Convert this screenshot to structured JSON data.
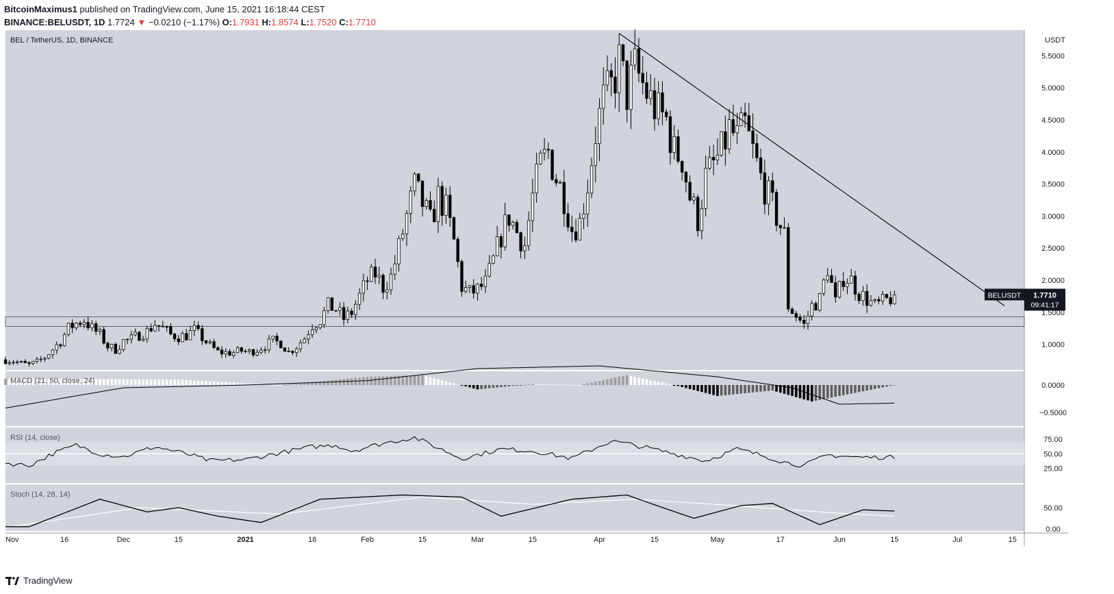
{
  "header": {
    "publisher": "BitcoinMaximus1",
    "published_text": " published on TradingView.com, June 15, 2021 16:18:44 CEST",
    "symbol": "BINANCE:BELUSDT, 1D",
    "last": "1.7724",
    "change_arrow": "▼",
    "change": "−0.0210 (−1.17%)",
    "open_label": "O:",
    "open": "1.7931",
    "high_label": "H:",
    "high": "1.8574",
    "low_label": "L:",
    "low": "1.7520",
    "close_label": "C:",
    "close": "1.7710"
  },
  "footer": {
    "brand": "TradingView"
  },
  "colors": {
    "panel_bg": "#d1d4dc",
    "band_bg": "#dcdee5",
    "candle_up_fill": "#ffffff",
    "candle_down_fill": "#000000",
    "line": "#000000",
    "down_text": "#e53935"
  },
  "chart_data": [
    {
      "type": "candlestick",
      "title": "BEL / TetherUS, 1D, BINANCE",
      "ylabel": "USDT",
      "ylim": [
        0.6,
        5.9
      ],
      "yticks": [
        1.0,
        1.5,
        2.0,
        2.5,
        3.0,
        3.5,
        4.0,
        4.5,
        5.0,
        5.5
      ],
      "ytick_labels": [
        "1.0000",
        "1.5000",
        "2.0000",
        "2.5000",
        "3.0000",
        "3.5000",
        "4.0000",
        "4.5000",
        "5.0000",
        "5.5000"
      ],
      "x_start": "2020-11-01",
      "x_end": "2021-07-18",
      "xticks": [
        {
          "date": "2020-11-01",
          "label": "Nov"
        },
        {
          "date": "2020-11-16",
          "label": "16"
        },
        {
          "date": "2020-12-01",
          "label": "Dec"
        },
        {
          "date": "2020-12-15",
          "label": "15"
        },
        {
          "date": "2021-01-01",
          "label": "2021"
        },
        {
          "date": "2021-01-18",
          "label": "18"
        },
        {
          "date": "2021-02-01",
          "label": "Feb"
        },
        {
          "date": "2021-02-15",
          "label": "15"
        },
        {
          "date": "2021-03-01",
          "label": "Mar"
        },
        {
          "date": "2021-03-15",
          "label": "15"
        },
        {
          "date": "2021-04-01",
          "label": "Apr"
        },
        {
          "date": "2021-04-15",
          "label": "15"
        },
        {
          "date": "2021-05-01",
          "label": "May"
        },
        {
          "date": "2021-05-17",
          "label": "17"
        },
        {
          "date": "2021-06-01",
          "label": "Jun"
        },
        {
          "date": "2021-06-15",
          "label": "15"
        },
        {
          "date": "2021-07-01",
          "label": "Jul"
        },
        {
          "date": "2021-07-15",
          "label": "15"
        }
      ],
      "close_points": [
        [
          "2020-11-01",
          0.76
        ],
        [
          "2020-11-03",
          0.74
        ],
        [
          "2020-11-05",
          0.7
        ],
        [
          "2020-11-07",
          0.68
        ],
        [
          "2020-11-09",
          0.72
        ],
        [
          "2020-11-11",
          0.8
        ],
        [
          "2020-11-13",
          0.92
        ],
        [
          "2020-11-15",
          1.05
        ],
        [
          "2020-11-17",
          1.25
        ],
        [
          "2020-11-19",
          1.33
        ],
        [
          "2020-11-21",
          1.38
        ],
        [
          "2020-11-23",
          1.25
        ],
        [
          "2020-11-25",
          1.15
        ],
        [
          "2020-11-27",
          0.97
        ],
        [
          "2020-11-29",
          0.92
        ],
        [
          "2020-12-01",
          1.05
        ],
        [
          "2020-12-03",
          1.08
        ],
        [
          "2020-12-05",
          1.15
        ],
        [
          "2020-12-07",
          1.2
        ],
        [
          "2020-12-09",
          1.32
        ],
        [
          "2020-12-11",
          1.25
        ],
        [
          "2020-12-13",
          1.15
        ],
        [
          "2020-12-15",
          1.12
        ],
        [
          "2020-12-17",
          1.14
        ],
        [
          "2020-12-19",
          1.22
        ],
        [
          "2020-12-21",
          1.1
        ],
        [
          "2020-12-23",
          0.98
        ],
        [
          "2020-12-25",
          0.88
        ],
        [
          "2020-12-27",
          0.87
        ],
        [
          "2020-12-29",
          0.87
        ],
        [
          "2020-12-31",
          0.9
        ],
        [
          "2021-01-02",
          0.88
        ],
        [
          "2021-01-04",
          0.92
        ],
        [
          "2021-01-06",
          0.98
        ],
        [
          "2021-01-08",
          1.05
        ],
        [
          "2021-01-10",
          1.02
        ],
        [
          "2021-01-12",
          0.88
        ],
        [
          "2021-01-14",
          0.97
        ],
        [
          "2021-01-16",
          1.1
        ],
        [
          "2021-01-18",
          1.3
        ],
        [
          "2021-01-20",
          1.38
        ],
        [
          "2021-01-22",
          1.6
        ],
        [
          "2021-01-24",
          1.55
        ],
        [
          "2021-01-26",
          1.4
        ],
        [
          "2021-01-28",
          1.5
        ],
        [
          "2021-01-30",
          1.75
        ],
        [
          "2021-02-01",
          2.0
        ],
        [
          "2021-02-03",
          2.1
        ],
        [
          "2021-02-05",
          1.9
        ],
        [
          "2021-02-07",
          2.05
        ],
        [
          "2021-02-09",
          2.5
        ],
        [
          "2021-02-11",
          3.0
        ],
        [
          "2021-02-13",
          3.45
        ],
        [
          "2021-02-15",
          3.2
        ],
        [
          "2021-02-17",
          2.9
        ],
        [
          "2021-02-19",
          3.3
        ],
        [
          "2021-02-21",
          3.1
        ],
        [
          "2021-02-23",
          2.6
        ],
        [
          "2021-02-25",
          1.9
        ],
        [
          "2021-02-27",
          1.8
        ],
        [
          "2021-03-01",
          1.85
        ],
        [
          "2021-03-03",
          1.95
        ],
        [
          "2021-03-05",
          2.3
        ],
        [
          "2021-03-07",
          2.7
        ],
        [
          "2021-03-09",
          3.0
        ],
        [
          "2021-03-11",
          2.75
        ],
        [
          "2021-03-13",
          2.55
        ],
        [
          "2021-03-15",
          3.3
        ],
        [
          "2021-03-17",
          3.8
        ],
        [
          "2021-03-19",
          4.0
        ],
        [
          "2021-03-21",
          3.6
        ],
        [
          "2021-03-23",
          3.3
        ],
        [
          "2021-03-25",
          2.8
        ],
        [
          "2021-03-27",
          2.9
        ],
        [
          "2021-03-29",
          3.5
        ],
        [
          "2021-03-31",
          4.3
        ],
        [
          "2021-04-02",
          4.8
        ],
        [
          "2021-04-04",
          5.0
        ],
        [
          "2021-04-06",
          5.4
        ],
        [
          "2021-04-08",
          4.9
        ],
        [
          "2021-04-10",
          5.3
        ],
        [
          "2021-04-12",
          5.05
        ],
        [
          "2021-04-14",
          4.8
        ],
        [
          "2021-04-16",
          4.6
        ],
        [
          "2021-04-18",
          4.5
        ],
        [
          "2021-04-20",
          4.0
        ],
        [
          "2021-04-22",
          3.9
        ],
        [
          "2021-04-24",
          3.3
        ],
        [
          "2021-04-26",
          2.95
        ],
        [
          "2021-04-28",
          3.6
        ],
        [
          "2021-04-30",
          3.8
        ],
        [
          "2021-05-02",
          4.0
        ],
        [
          "2021-05-04",
          4.35
        ],
        [
          "2021-05-06",
          4.2
        ],
        [
          "2021-05-08",
          4.4
        ],
        [
          "2021-05-10",
          4.0
        ],
        [
          "2021-05-12",
          3.6
        ],
        [
          "2021-05-14",
          3.3
        ],
        [
          "2021-05-16",
          3.0
        ],
        [
          "2021-05-18",
          2.7
        ],
        [
          "2021-05-19",
          1.6
        ],
        [
          "2021-05-21",
          1.45
        ],
        [
          "2021-05-23",
          1.3
        ],
        [
          "2021-05-25",
          1.6
        ],
        [
          "2021-05-27",
          1.7
        ],
        [
          "2021-05-29",
          2.2
        ],
        [
          "2021-05-31",
          1.65
        ],
        [
          "2021-06-02",
          2.05
        ],
        [
          "2021-06-04",
          2.0
        ],
        [
          "2021-06-06",
          1.8
        ],
        [
          "2021-06-08",
          1.7
        ],
        [
          "2021-06-10",
          1.6
        ],
        [
          "2021-06-12",
          1.65
        ],
        [
          "2021-06-14",
          1.72
        ],
        [
          "2021-06-15",
          1.771
        ]
      ],
      "support_zone": [
        1.28,
        1.43
      ],
      "trendline": [
        [
          "2021-04-06",
          5.85
        ],
        [
          "2021-07-13",
          1.6
        ]
      ],
      "price_label": {
        "name": "BELUSDT",
        "value": "1.7710",
        "countdown": "09:41:17"
      }
    },
    {
      "type": "histogram",
      "title": "MACD (21, 50, close, 24)",
      "ylim": [
        -0.75,
        0.25
      ],
      "yticks": [
        0.0,
        -0.5
      ],
      "ytick_labels": [
        "0.0000",
        "−0.5000"
      ],
      "signal_points": [
        [
          "2020-11-01",
          -0.42
        ],
        [
          "2020-12-01",
          -0.05
        ],
        [
          "2021-01-01",
          0.0
        ],
        [
          "2021-02-01",
          0.08
        ],
        [
          "2021-03-01",
          0.3
        ],
        [
          "2021-04-01",
          0.35
        ],
        [
          "2021-05-01",
          0.15
        ],
        [
          "2021-05-20",
          -0.05
        ],
        [
          "2021-06-01",
          -0.35
        ],
        [
          "2021-06-15",
          -0.33
        ]
      ],
      "hist_points": [
        [
          "2020-11-01",
          0.12
        ],
        [
          "2020-12-15",
          0.1
        ],
        [
          "2021-01-10",
          0.0
        ],
        [
          "2021-02-01",
          0.15
        ],
        [
          "2021-02-15",
          0.18
        ],
        [
          "2021-03-01",
          -0.08
        ],
        [
          "2021-03-15",
          0.02
        ],
        [
          "2021-03-27",
          0.0
        ],
        [
          "2021-04-08",
          0.18
        ],
        [
          "2021-04-20",
          0.0
        ],
        [
          "2021-05-01",
          -0.2
        ],
        [
          "2021-05-15",
          -0.1
        ],
        [
          "2021-05-25",
          -0.3
        ],
        [
          "2021-06-15",
          0.0
        ]
      ]
    },
    {
      "type": "line",
      "title": "RSI (14, close)",
      "ylim": [
        0,
        95
      ],
      "yticks": [
        75.0,
        50.0,
        25.0
      ],
      "ytick_labels": [
        "75.00",
        "50.00",
        "25.00"
      ],
      "band": [
        30,
        70
      ],
      "values_points": [
        [
          "2020-11-01",
          34
        ],
        [
          "2020-11-07",
          30
        ],
        [
          "2020-11-13",
          50
        ],
        [
          "2020-11-19",
          65
        ],
        [
          "2020-11-25",
          50
        ],
        [
          "2020-12-01",
          45
        ],
        [
          "2020-12-09",
          62
        ],
        [
          "2020-12-17",
          50
        ],
        [
          "2020-12-23",
          38
        ],
        [
          "2021-01-01",
          40
        ],
        [
          "2021-01-10",
          52
        ],
        [
          "2021-01-18",
          62
        ],
        [
          "2021-01-24",
          65
        ],
        [
          "2021-01-28",
          55
        ],
        [
          "2021-02-05",
          68
        ],
        [
          "2021-02-13",
          78
        ],
        [
          "2021-02-19",
          60
        ],
        [
          "2021-02-25",
          42
        ],
        [
          "2021-03-07",
          58
        ],
        [
          "2021-03-15",
          55
        ],
        [
          "2021-03-25",
          42
        ],
        [
          "2021-04-04",
          72
        ],
        [
          "2021-04-12",
          62
        ],
        [
          "2021-04-20",
          50
        ],
        [
          "2021-04-28",
          38
        ],
        [
          "2021-05-06",
          58
        ],
        [
          "2021-05-12",
          48
        ],
        [
          "2021-05-19",
          34
        ],
        [
          "2021-05-23",
          30
        ],
        [
          "2021-05-29",
          48
        ],
        [
          "2021-06-06",
          44
        ],
        [
          "2021-06-15",
          44
        ]
      ]
    },
    {
      "type": "line",
      "title": "Stoch (14, 28, 14)",
      "ylim": [
        -5,
        105
      ],
      "yticks": [
        50.0,
        0.0
      ],
      "ytick_labels": [
        "50.00",
        "0.00"
      ],
      "k_points": [
        [
          "2020-11-01",
          5
        ],
        [
          "2020-11-07",
          5
        ],
        [
          "2020-11-25",
          70
        ],
        [
          "2020-12-07",
          40
        ],
        [
          "2020-12-15",
          50
        ],
        [
          "2020-12-25",
          30
        ],
        [
          "2021-01-05",
          15
        ],
        [
          "2021-01-20",
          70
        ],
        [
          "2021-02-10",
          80
        ],
        [
          "2021-02-25",
          75
        ],
        [
          "2021-03-07",
          30
        ],
        [
          "2021-03-25",
          70
        ],
        [
          "2021-04-08",
          80
        ],
        [
          "2021-04-14",
          60
        ],
        [
          "2021-04-25",
          25
        ],
        [
          "2021-05-07",
          55
        ],
        [
          "2021-05-15",
          60
        ],
        [
          "2021-05-27",
          10
        ],
        [
          "2021-06-07",
          45
        ],
        [
          "2021-06-15",
          42
        ]
      ],
      "d_points": [
        [
          "2020-11-01",
          3
        ],
        [
          "2020-12-05",
          50
        ],
        [
          "2021-01-10",
          35
        ],
        [
          "2021-02-15",
          75
        ],
        [
          "2021-03-15",
          58
        ],
        [
          "2021-04-10",
          70
        ],
        [
          "2021-05-05",
          55
        ],
        [
          "2021-05-30",
          38
        ],
        [
          "2021-06-15",
          30
        ]
      ]
    }
  ]
}
